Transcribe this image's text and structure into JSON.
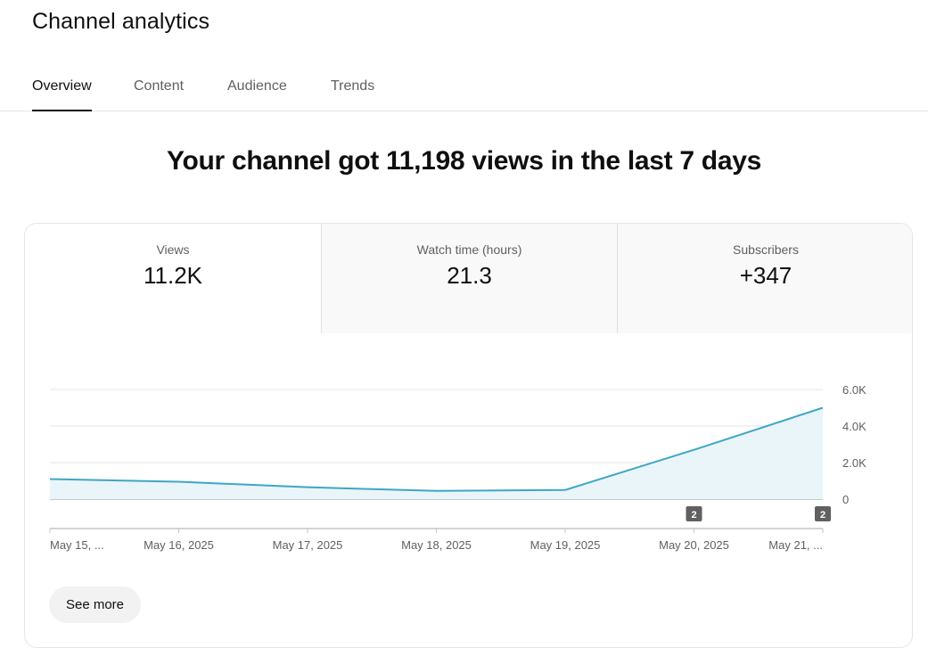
{
  "page": {
    "title": "Channel analytics"
  },
  "tabs": [
    {
      "label": "Overview",
      "active": true
    },
    {
      "label": "Content",
      "active": false
    },
    {
      "label": "Audience",
      "active": false
    },
    {
      "label": "Trends",
      "active": false
    }
  ],
  "headline": "Your channel got 11,198 views in the last 7 days",
  "metrics": [
    {
      "label": "Views",
      "value": "11.2K",
      "selected": true
    },
    {
      "label": "Watch time (hours)",
      "value": "21.3",
      "selected": false
    },
    {
      "label": "Subscribers",
      "value": "+347",
      "selected": false
    }
  ],
  "chart_data": {
    "type": "area",
    "x": [
      "May 15, ...",
      "May 16, 2025",
      "May 17, 2025",
      "May 18, 2025",
      "May 19, 2025",
      "May 20, 2025",
      "May 21, ..."
    ],
    "values": [
      1100,
      950,
      650,
      450,
      500,
      2700,
      5000
    ],
    "ylim": [
      0,
      6000
    ],
    "y_ticks": [
      "0",
      "2.0K",
      "4.0K",
      "6.0K"
    ],
    "y_tick_values": [
      0,
      2000,
      4000,
      6000
    ],
    "grid": true,
    "markers": [
      {
        "x_index": 5,
        "label": "2"
      },
      {
        "x_index": 6,
        "label": "2"
      }
    ],
    "colors": {
      "line": "#3ea6c4",
      "fill": "#eaf5fa",
      "grid": "#e5e5e5",
      "axis": "#909090",
      "marker_bg": "#606060"
    }
  },
  "actions": {
    "see_more": "See more"
  }
}
